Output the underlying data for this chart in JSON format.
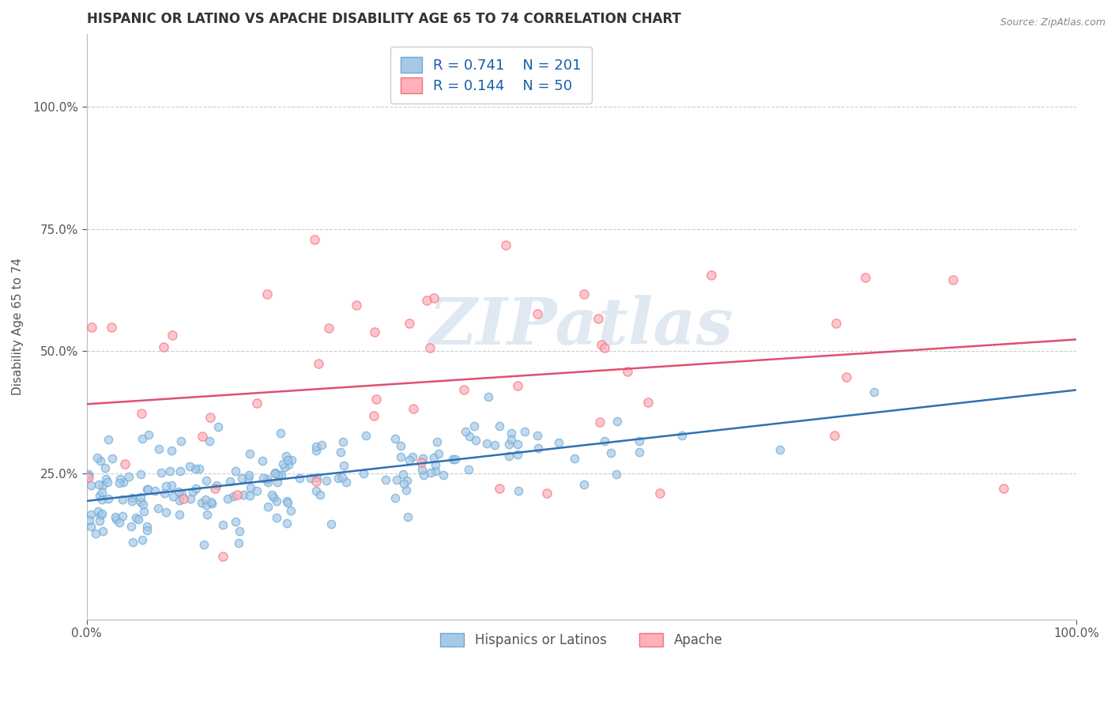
{
  "title": "HISPANIC OR LATINO VS APACHE DISABILITY AGE 65 TO 74 CORRELATION CHART",
  "source": "Source: ZipAtlas.com",
  "ylabel": "Disability Age 65 to 74",
  "xlim": [
    0,
    1
  ],
  "ylim": [
    -0.05,
    1.15
  ],
  "xtick_positions": [
    0,
    1
  ],
  "xtick_labels": [
    "0.0%",
    "100.0%"
  ],
  "ytick_positions": [
    0.25,
    0.5,
    0.75,
    1.0
  ],
  "ytick_labels": [
    "25.0%",
    "50.0%",
    "75.0%",
    "100.0%"
  ],
  "series1": {
    "label": "Hispanics or Latinos",
    "R": 0.741,
    "N": 201,
    "dot_color": "#a8c8e8",
    "edge_color": "#6aaad4",
    "line_color": "#3070b0"
  },
  "series2": {
    "label": "Apache",
    "R": 0.144,
    "N": 50,
    "dot_color": "#ffb0b8",
    "edge_color": "#f07080",
    "line_color": "#e05070"
  },
  "watermark": "ZIPatlas",
  "title_color": "#333333",
  "axis_color": "#555555",
  "grid_color": "#cccccc",
  "background_color": "#ffffff",
  "legend_R_color": "#1a5fa8",
  "legend_N_color": "#cc0000"
}
